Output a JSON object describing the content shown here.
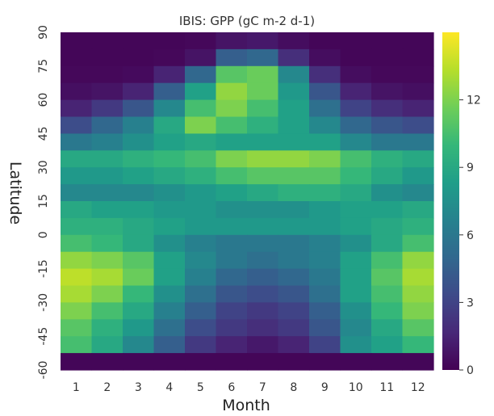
{
  "chart_data": {
    "type": "heatmap",
    "title": "IBIS: GPP (gC m-2 d-1)",
    "xlabel": "Month",
    "ylabel": "Latitude",
    "x_categories": [
      "1",
      "2",
      "3",
      "4",
      "5",
      "6",
      "7",
      "8",
      "9",
      "10",
      "11",
      "12"
    ],
    "y_tick_labels": [
      "90",
      "75",
      "60",
      "45",
      "30",
      "15",
      "0",
      "-15",
      "-30",
      "-45",
      "-60"
    ],
    "y_range": [
      -60,
      90
    ],
    "colorbar": {
      "colormap": "viridis",
      "range": [
        0,
        15
      ],
      "tick_labels": [
        "0",
        "3",
        "6",
        "9",
        "12"
      ]
    },
    "latitude_bands": [
      90,
      82.5,
      75,
      67.5,
      60,
      52.5,
      45,
      37.5,
      30,
      22.5,
      15,
      7.5,
      0,
      -7.5,
      -15,
      -22.5,
      -30,
      -37.5,
      -45,
      -52.5,
      -60
    ],
    "values": [
      [
        0.2,
        0.2,
        0.2,
        0.2,
        0.3,
        0.8,
        1.0,
        0.5,
        0.2,
        0.2,
        0.2,
        0.2
      ],
      [
        0.2,
        0.2,
        0.2,
        0.3,
        0.8,
        4.5,
        5.0,
        2.0,
        0.5,
        0.2,
        0.2,
        0.2
      ],
      [
        0.3,
        0.3,
        0.4,
        1.5,
        5.0,
        11.0,
        11.5,
        7.0,
        2.0,
        0.5,
        0.3,
        0.3
      ],
      [
        0.6,
        0.8,
        1.5,
        4.5,
        8.5,
        12.5,
        11.5,
        8.0,
        4.0,
        1.5,
        0.8,
        0.6
      ],
      [
        1.5,
        2.5,
        4.0,
        7.0,
        10.5,
        12.0,
        10.5,
        8.5,
        5.5,
        3.0,
        2.0,
        1.5
      ],
      [
        3.5,
        5.0,
        6.5,
        9.0,
        12.0,
        10.5,
        9.5,
        8.5,
        7.0,
        5.0,
        4.0,
        3.5
      ],
      [
        6.0,
        6.5,
        7.5,
        8.5,
        9.0,
        8.5,
        8.5,
        8.5,
        8.5,
        7.0,
        6.0,
        6.0
      ],
      [
        9.0,
        9.0,
        9.5,
        10.0,
        10.5,
        12.0,
        12.5,
        12.5,
        12.0,
        10.5,
        9.5,
        9.0
      ],
      [
        8.0,
        8.0,
        8.5,
        9.0,
        9.5,
        10.5,
        11.0,
        11.0,
        11.0,
        10.0,
        9.0,
        8.0
      ],
      [
        7.0,
        7.0,
        7.0,
        7.5,
        8.0,
        8.5,
        9.0,
        9.5,
        9.5,
        9.0,
        7.5,
        7.0
      ],
      [
        9.0,
        8.5,
        8.5,
        8.0,
        8.0,
        7.5,
        7.5,
        7.5,
        8.0,
        8.5,
        8.5,
        9.0
      ],
      [
        9.5,
        9.5,
        9.0,
        8.5,
        8.0,
        8.0,
        8.0,
        8.0,
        8.0,
        8.5,
        9.0,
        9.5
      ],
      [
        10.5,
        10.0,
        9.0,
        7.5,
        6.5,
        6.0,
        6.0,
        6.0,
        6.5,
        7.5,
        9.0,
        10.5
      ],
      [
        12.5,
        12.0,
        11.0,
        8.5,
        7.0,
        6.0,
        5.5,
        6.0,
        6.5,
        8.5,
        10.5,
        12.5
      ],
      [
        13.5,
        13.0,
        11.5,
        8.5,
        6.5,
        5.0,
        4.5,
        5.0,
        6.0,
        8.5,
        11.0,
        13.0
      ],
      [
        13.0,
        12.0,
        10.0,
        7.5,
        5.5,
        4.0,
        3.5,
        4.0,
        5.5,
        8.5,
        10.5,
        12.5
      ],
      [
        12.0,
        10.5,
        9.0,
        6.5,
        4.5,
        3.0,
        2.5,
        3.0,
        4.5,
        7.5,
        10.0,
        12.0
      ],
      [
        11.0,
        9.5,
        8.0,
        5.5,
        3.5,
        2.5,
        2.0,
        2.5,
        4.0,
        7.0,
        9.0,
        11.0
      ],
      [
        10.5,
        9.0,
        7.0,
        4.5,
        2.5,
        1.5,
        1.0,
        1.5,
        3.0,
        7.5,
        8.5,
        10.0
      ],
      [
        0.2,
        0.2,
        0.2,
        0.2,
        0.2,
        0.2,
        0.2,
        0.2,
        0.2,
        0.2,
        0.2,
        0.2
      ]
    ]
  }
}
